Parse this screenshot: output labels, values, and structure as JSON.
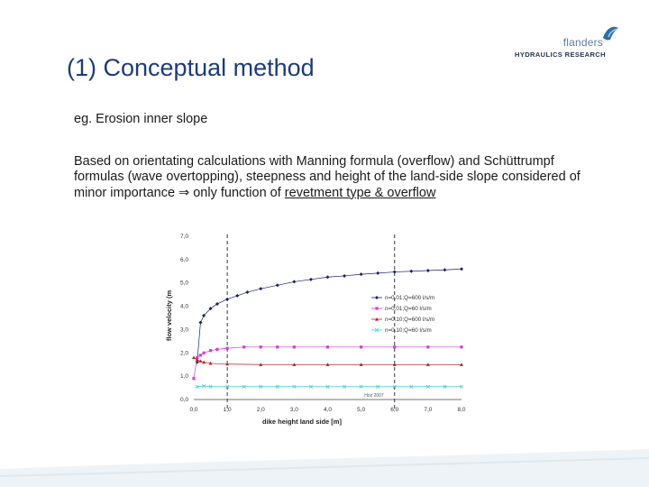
{
  "logo": {
    "word": "flanders",
    "subtitle": "HYDRAULICS RESEARCH"
  },
  "slide": {
    "title": "(1) Conceptual method",
    "subtitle": "eg. Erosion inner slope",
    "body_part1": "Based on orientating calculations with Manning formula (overflow) and Schüttrumpf formulas (wave overtopping), steepness and height of the land-side slope considered of minor importance ",
    "implies_symbol": "⇒",
    "body_part2": " only function of ",
    "body_underlined": "revetment type & overflow"
  },
  "colors": {
    "title": "#1d3b7a",
    "series": [
      "#1a1f6e",
      "#d43bd8",
      "#b3222a",
      "#3fd0d8"
    ],
    "accent_bar": "#dfe8ef"
  },
  "chart_data": {
    "type": "scatter",
    "xlabel": "dike height land side [m]",
    "ylabel": "flow velocity (m",
    "xlim": [
      0,
      8
    ],
    "ylim": [
      0,
      7
    ],
    "x_ticks": [
      "0,0",
      "1,0",
      "2,0",
      "3,0",
      "4,0",
      "5,0",
      "6,0",
      "7,0",
      "8,0"
    ],
    "y_ticks": [
      "0,0",
      "1,0",
      "2,0",
      "3,0",
      "4,0",
      "5,0",
      "6,0",
      "7,0"
    ],
    "vlines": [
      1.0,
      6.0
    ],
    "annotation": "Hoz 2007",
    "legend_position": "right",
    "series": [
      {
        "name": "n=0.01;Q=600 l/s/m",
        "marker": "diamond",
        "x": [
          0.1,
          0.2,
          0.3,
          0.5,
          0.7,
          1.0,
          1.3,
          1.6,
          2.0,
          2.5,
          3.0,
          3.5,
          4.0,
          4.5,
          5.0,
          5.5,
          6.0,
          6.5,
          7.0,
          7.5,
          8.0
        ],
        "y": [
          1.6,
          3.3,
          3.6,
          3.9,
          4.1,
          4.3,
          4.45,
          4.6,
          4.75,
          4.9,
          5.05,
          5.15,
          5.25,
          5.3,
          5.37,
          5.42,
          5.47,
          5.5,
          5.53,
          5.56,
          5.6
        ]
      },
      {
        "name": "n=0.01;Q=60 l/s/m",
        "marker": "square",
        "x": [
          0.0,
          0.1,
          0.2,
          0.3,
          0.5,
          0.7,
          1.0,
          1.5,
          2.0,
          2.5,
          3.0,
          4.0,
          5.0,
          6.0,
          7.0,
          8.0
        ],
        "y": [
          0.9,
          1.8,
          1.9,
          2.0,
          2.1,
          2.15,
          2.2,
          2.25,
          2.25,
          2.25,
          2.25,
          2.25,
          2.25,
          2.25,
          2.25,
          2.25
        ]
      },
      {
        "name": "n=0.10;Q=600 l/s/m",
        "marker": "triangle",
        "x": [
          0.0,
          0.1,
          0.2,
          0.3,
          0.5,
          1.0,
          2.0,
          3.0,
          4.0,
          5.0,
          6.0,
          7.0,
          8.0
        ],
        "y": [
          1.8,
          1.7,
          1.65,
          1.6,
          1.55,
          1.52,
          1.5,
          1.5,
          1.5,
          1.5,
          1.5,
          1.5,
          1.5
        ]
      },
      {
        "name": "n=0.10;Q=60 l/s/m",
        "marker": "cross",
        "x": [
          0.1,
          0.3,
          0.5,
          1.0,
          1.5,
          2.0,
          2.5,
          3.0,
          3.5,
          4.0,
          4.5,
          5.0,
          5.5,
          6.0,
          6.5,
          7.0,
          7.5,
          8.0
        ],
        "y": [
          0.55,
          0.58,
          0.55,
          0.55,
          0.55,
          0.55,
          0.55,
          0.55,
          0.55,
          0.55,
          0.55,
          0.55,
          0.55,
          0.55,
          0.55,
          0.55,
          0.55,
          0.55
        ]
      }
    ]
  }
}
